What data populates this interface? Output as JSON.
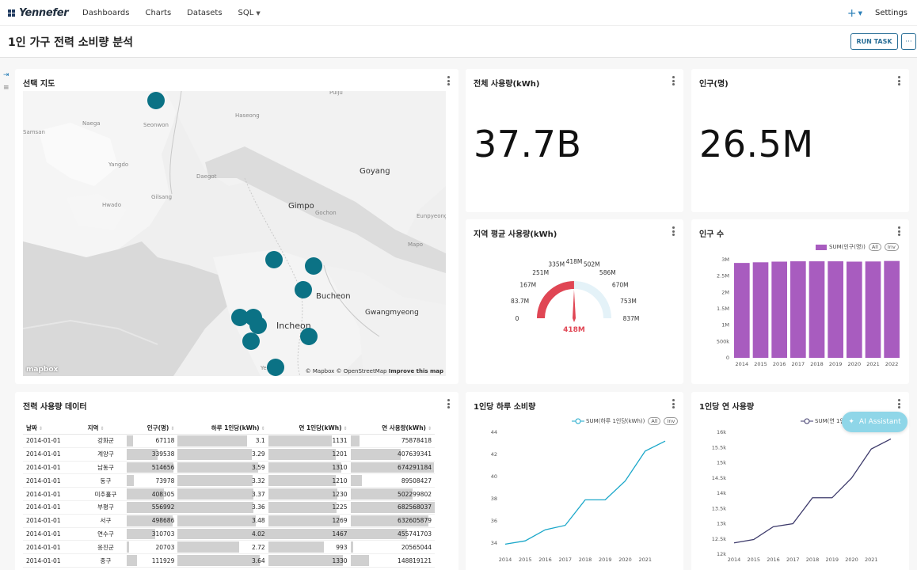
{
  "app": {
    "logo": "Yennefer"
  },
  "nav": {
    "items": [
      "Dashboards",
      "Charts",
      "Datasets",
      "SQL"
    ],
    "plus": "+",
    "settings": "Settings"
  },
  "page": {
    "title": "1인 가구 전력 소비량 분석",
    "run_task": "RUN TASK",
    "more": "···"
  },
  "map_card": {
    "title": "선택 지도",
    "labels": [
      "Gimpo",
      "Goyang",
      "Bucheon",
      "Incheon",
      "Gwangmyeong",
      "Haseong",
      "Naega",
      "Seonwon",
      "Yangdo",
      "Daegot",
      "Gilsang",
      "Hwado",
      "Gochon",
      "Eunpyeong",
      "Mapo",
      "Samsan",
      "Pulju",
      "Yeongu"
    ],
    "attribution": "© Mapbox © OpenStreetMap",
    "improve": "Improve this map",
    "mapbox": "mapbox"
  },
  "total_usage": {
    "title": "전체 사용량(kWh)",
    "value": "37.7B"
  },
  "population": {
    "title": "인구(명)",
    "value": "26.5M"
  },
  "gauge": {
    "title": "지역 평균 사용량(kWh)",
    "value_label": "418M",
    "value": 418,
    "max": 837,
    "ticks": [
      "0",
      "83.7M",
      "167M",
      "251M",
      "335M",
      "418M",
      "502M",
      "586M",
      "670M",
      "753M",
      "837M"
    ]
  },
  "population_chart": {
    "title": "인구 수",
    "legend": "SUM(인구(명))",
    "all": "All",
    "inv": "Inv",
    "color": "#a85cbf"
  },
  "table": {
    "title": "전력 사용량 데이터",
    "columns": [
      "날짜",
      "지역",
      "인구(명)",
      "하루 1인당(kWh)",
      "연 1인당(kWh)",
      "연 사용량(kWh)"
    ],
    "rows": [
      [
        "2014-01-01",
        "강화군",
        "67118",
        "3.1",
        "1131",
        "75878418"
      ],
      [
        "2014-01-01",
        "계양구",
        "339538",
        "3.29",
        "1201",
        "407639341"
      ],
      [
        "2014-01-01",
        "남동구",
        "514656",
        "3.59",
        "1310",
        "674291184"
      ],
      [
        "2014-01-01",
        "동구",
        "73978",
        "3.32",
        "1210",
        "89508427"
      ],
      [
        "2014-01-01",
        "미추홀구",
        "408305",
        "3.37",
        "1230",
        "502299802"
      ],
      [
        "2014-01-01",
        "부평구",
        "556992",
        "3.36",
        "1225",
        "682568037"
      ],
      [
        "2014-01-01",
        "서구",
        "498686",
        "3.48",
        "1269",
        "632605879"
      ],
      [
        "2014-01-01",
        "연수구",
        "310703",
        "4.02",
        "1467",
        "455741703"
      ],
      [
        "2014-01-01",
        "옹진군",
        "20703",
        "2.72",
        "993",
        "20565044"
      ],
      [
        "2014-01-01",
        "중구",
        "111929",
        "3.64",
        "1330",
        "148819121"
      ]
    ]
  },
  "daily_chart": {
    "title": "1인당 하루 소비량",
    "legend": "SUM(하루 1인당(kWh))",
    "all": "All",
    "inv": "Inv",
    "color": "#1aa7c9"
  },
  "yearly_chart": {
    "title": "1인당 연 사용량",
    "legend": "SUM(연 1인당",
    "color": "#3d3a6b"
  },
  "ai": {
    "label": "AI Assistant"
  },
  "chart_data": [
    {
      "type": "bar",
      "title": "인구 수",
      "categories": [
        "2014",
        "2015",
        "2016",
        "2017",
        "2018",
        "2019",
        "2020",
        "2021",
        "2022"
      ],
      "series": [
        {
          "name": "SUM(인구(명))",
          "values": [
            2900000,
            2920000,
            2940000,
            2950000,
            2950000,
            2950000,
            2940000,
            2945000,
            2960000
          ]
        }
      ],
      "yticks": [
        "0",
        "500k",
        "1M",
        "1.5M",
        "2M",
        "2.5M",
        "3M"
      ],
      "ylim": [
        0,
        3000000
      ]
    },
    {
      "type": "line",
      "title": "1인당 하루 소비량",
      "x": [
        "2014",
        "2015",
        "2016",
        "2017",
        "2018",
        "2019",
        "2020",
        "2021",
        "2022"
      ],
      "series": [
        {
          "name": "SUM(하루 1인당(kWh))",
          "values": [
            33.9,
            34.2,
            35.2,
            35.6,
            37.9,
            37.9,
            39.6,
            42.3,
            43.2
          ]
        }
      ],
      "yticks": [
        "34",
        "36",
        "38",
        "40",
        "42",
        "44"
      ],
      "xticks": [
        "2014",
        "2015",
        "2016",
        "2017",
        "2018",
        "2019",
        "2020",
        "2021"
      ],
      "ylim": [
        33,
        44
      ]
    },
    {
      "type": "line",
      "title": "1인당 연 사용량",
      "x": [
        "2014",
        "2015",
        "2016",
        "2017",
        "2018",
        "2019",
        "2020",
        "2021",
        "2022"
      ],
      "series": [
        {
          "name": "SUM(연 1인당",
          "values": [
            12370,
            12480,
            12900,
            13000,
            13850,
            13850,
            14500,
            15450,
            15780
          ]
        }
      ],
      "yticks": [
        "12k",
        "12.5k",
        "13k",
        "13.5k",
        "14k",
        "14.5k",
        "15k",
        "15.5k",
        "16k"
      ],
      "xticks": [
        "2014",
        "2015",
        "2016",
        "2017",
        "2018",
        "2019",
        "2020",
        "2021"
      ],
      "ylim": [
        12000,
        16000
      ]
    }
  ]
}
